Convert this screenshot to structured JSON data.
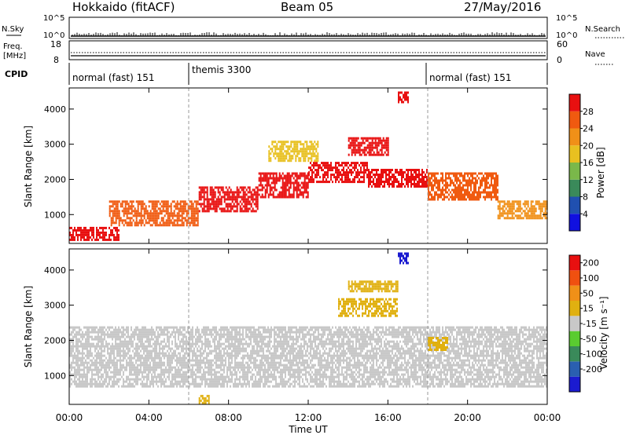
{
  "header": {
    "title": "Hokkaido (fitACF)",
    "beam": "Beam 05",
    "date": "27/May/2016"
  },
  "panels": {
    "nsky": {
      "label": "N.Sky",
      "ticks": [
        "10^5",
        "10^0"
      ],
      "right_label": "N.Search"
    },
    "freq": {
      "label_lines": [
        "Freq.",
        "[MHz]"
      ],
      "left_ticks": [
        "18",
        "8"
      ],
      "right_ticks": [
        "60",
        "0"
      ],
      "right_label": "Nave"
    },
    "cpid": {
      "label": "CPID",
      "segments": [
        "normal (fast) 151",
        "themis 3300",
        "normal (fast) 151"
      ],
      "boundaries": [
        "06:00",
        "18:00"
      ]
    }
  },
  "colors": {
    "power_scale": [
      "#1010e0",
      "#2050b0",
      "#3a8a5a",
      "#7ab84a",
      "#e8c020",
      "#f09018",
      "#f05a10",
      "#e81010"
    ],
    "velocity_scale": [
      "#1b1bd0",
      "#2a5fb0",
      "#3a8a5a",
      "#5acc30",
      "#c8c8c8",
      "#e0b010",
      "#f09018",
      "#f05010",
      "#e81010"
    ],
    "ground_scatter": "#c8c8c8"
  },
  "chart_data": [
    {
      "type": "heatmap",
      "title": "Power",
      "xlabel": "",
      "ylabel": "Slant Range [km]",
      "ylim": [
        180,
        4600
      ],
      "yticks": [
        "1000",
        "2000",
        "3000",
        "4000"
      ],
      "xticks": [
        "00:00",
        "04:00",
        "08:00",
        "12:00",
        "16:00",
        "20:00",
        "00:00"
      ],
      "colorbar": {
        "label": "Power [dB]",
        "ticks": [
          "4",
          "8",
          "12",
          "16",
          "20",
          "24",
          "28"
        ],
        "range": [
          0,
          32
        ]
      },
      "regions": [
        {
          "t": [
            0.0,
            2.5
          ],
          "range": [
            250,
            650
          ],
          "value": 28
        },
        {
          "t": [
            2.0,
            6.5
          ],
          "range": [
            700,
            1400
          ],
          "value": 26
        },
        {
          "t": [
            6.5,
            9.5
          ],
          "range": [
            1100,
            1800
          ],
          "value": 28
        },
        {
          "t": [
            9.5,
            12.0
          ],
          "range": [
            1500,
            2200
          ],
          "value": 28
        },
        {
          "t": [
            12.0,
            15.0
          ],
          "range": [
            1900,
            2500
          ],
          "value": 28
        },
        {
          "t": [
            15.0,
            18.0
          ],
          "range": [
            1800,
            2300
          ],
          "value": 28
        },
        {
          "t": [
            18.0,
            21.5
          ],
          "range": [
            1400,
            2200
          ],
          "value": 26
        },
        {
          "t": [
            21.5,
            24.0
          ],
          "range": [
            900,
            1400
          ],
          "value": 22
        },
        {
          "t": [
            14.0,
            16.0
          ],
          "range": [
            2700,
            3200
          ],
          "value": 30
        },
        {
          "t": [
            10.0,
            12.5
          ],
          "range": [
            2500,
            3100
          ],
          "value": 18
        },
        {
          "t": [
            16.5,
            17.0
          ],
          "range": [
            4200,
            4500
          ],
          "value": 28
        }
      ]
    },
    {
      "type": "heatmap",
      "title": "Velocity",
      "xlabel": "Time UT",
      "ylabel": "Slant Range [km]",
      "ylim": [
        180,
        4600
      ],
      "yticks": [
        "1000",
        "2000",
        "3000",
        "4000"
      ],
      "xticks": [
        "00:00",
        "04:00",
        "08:00",
        "12:00",
        "16:00",
        "20:00",
        "00:00"
      ],
      "colorbar": {
        "label": "Velocity [m s⁻¹]",
        "ticks": [
          "200",
          "100",
          "50",
          "15",
          "-15",
          "-50",
          "-100",
          "-200"
        ],
        "range": [
          -250,
          250
        ]
      },
      "regions": [
        {
          "t": [
            0.0,
            24.0
          ],
          "range": [
            700,
            2400
          ],
          "value": 0,
          "class": "ground_scatter"
        },
        {
          "t": [
            13.5,
            16.5
          ],
          "range": [
            2700,
            3200
          ],
          "value": 60
        },
        {
          "t": [
            14.0,
            16.5
          ],
          "range": [
            3400,
            3700
          ],
          "value": 70
        },
        {
          "t": [
            16.5,
            17.0
          ],
          "range": [
            4200,
            4500
          ],
          "value": -220
        },
        {
          "t": [
            6.5,
            7.0
          ],
          "range": [
            200,
            450
          ],
          "value": 50
        },
        {
          "t": [
            18.0,
            19.0
          ],
          "range": [
            1700,
            2100
          ],
          "value": 40
        }
      ]
    }
  ]
}
